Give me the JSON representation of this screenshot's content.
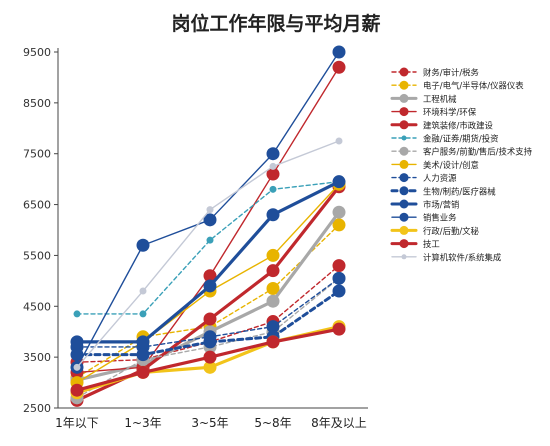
{
  "chart_data": {
    "type": "line",
    "title": "岗位工作年限与平均月薪",
    "categories": [
      "1年以下",
      "1~3年",
      "3~5年",
      "5~8年",
      "8年及以上"
    ],
    "ylim": [
      2500,
      9500
    ],
    "yticks": [
      2500,
      3500,
      4500,
      5500,
      6500,
      7500,
      8500,
      9500
    ],
    "grid": false,
    "legend_position": "right",
    "series": [
      {
        "name": "财务/审计/税务",
        "color": "#c0282d",
        "style": "dash",
        "marker": true,
        "values": [
          3400,
          3450,
          3800,
          4200,
          5300
        ]
      },
      {
        "name": "电子/电气/半导体/仪器仪表",
        "color": "#e8b400",
        "style": "dash",
        "marker": true,
        "values": [
          3100,
          3900,
          4100,
          4850,
          6100
        ]
      },
      {
        "name": "工程机械",
        "color": "#a8a8a8",
        "style": "solid-thick",
        "marker": true,
        "values": [
          3050,
          3350,
          4000,
          4600,
          6350
        ]
      },
      {
        "name": "环境科学/环保",
        "color": "#c0282d",
        "style": "solid",
        "marker": true,
        "values": [
          3200,
          3300,
          5100,
          7100,
          9200
        ]
      },
      {
        "name": "建筑装修/市政建设",
        "color": "#c0282d",
        "style": "solid-thick",
        "marker": true,
        "values": [
          2650,
          3250,
          4250,
          5200,
          6850
        ]
      },
      {
        "name": "金融/证券/期货/投资",
        "color": "#3aa0b8",
        "style": "dash",
        "marker": true,
        "values": [
          4350,
          4350,
          5800,
          6800,
          6950
        ]
      },
      {
        "name": "客户服务/前勤/售后/技术支持",
        "color": "#a8a8a8",
        "style": "dash",
        "marker": true,
        "values": [
          2700,
          3450,
          3700,
          4000,
          5050
        ]
      },
      {
        "name": "美术/设计/创意",
        "color": "#e8b400",
        "style": "solid",
        "marker": true,
        "values": [
          3000,
          3800,
          4800,
          5500,
          6900
        ]
      },
      {
        "name": "人力资源",
        "color": "#1f4e9a",
        "style": "dash",
        "marker": true,
        "values": [
          3700,
          3700,
          3900,
          4100,
          5050
        ]
      },
      {
        "name": "生物/制药/医疗器械",
        "color": "#1f4e9a",
        "style": "dash-thick",
        "marker": true,
        "values": [
          3550,
          3550,
          3800,
          3900,
          4800
        ]
      },
      {
        "name": "市场/营销",
        "color": "#1f4e9a",
        "style": "solid-thick",
        "marker": true,
        "values": [
          3800,
          3800,
          4900,
          6300,
          6950
        ]
      },
      {
        "name": "销售业务",
        "color": "#1f4e9a",
        "style": "solid",
        "marker": true,
        "values": [
          3300,
          5700,
          6200,
          7500,
          9500
        ]
      },
      {
        "name": "行政/后勤/文秘",
        "color": "#f2c41a",
        "style": "solid-thick",
        "marker": true,
        "values": [
          2800,
          3200,
          3300,
          3800,
          4100
        ]
      },
      {
        "name": "技工",
        "color": "#c0282d",
        "style": "solid-thick",
        "marker": true,
        "values": [
          2850,
          3200,
          3500,
          3800,
          4050
        ]
      },
      {
        "name": "计算机软件/系统集成",
        "color": "#c4c9d6",
        "style": "solid",
        "marker": true,
        "values": [
          3300,
          4800,
          6400,
          7250,
          7750
        ]
      }
    ]
  }
}
